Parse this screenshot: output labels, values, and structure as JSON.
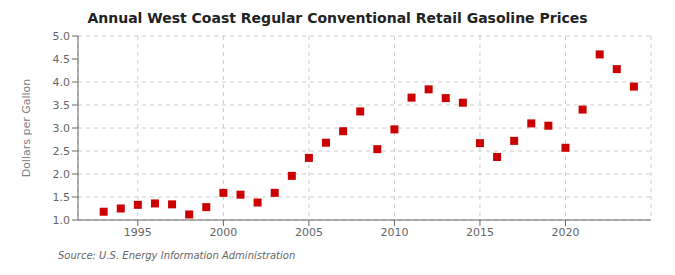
{
  "chart_data": {
    "type": "scatter",
    "title": "Annual West Coast Regular Conventional Retail Gasoline Prices",
    "ylabel": "Dollars per Gallon",
    "source": "Source: U.S. Energy Information Administration",
    "x": [
      1993,
      1994,
      1995,
      1996,
      1997,
      1998,
      1999,
      2000,
      2001,
      2002,
      2003,
      2004,
      2005,
      2006,
      2007,
      2008,
      2009,
      2010,
      2011,
      2012,
      2013,
      2014,
      2015,
      2016,
      2017,
      2018,
      2019,
      2020,
      2021,
      2022,
      2023,
      2024
    ],
    "values": [
      1.18,
      1.25,
      1.33,
      1.36,
      1.34,
      1.12,
      1.28,
      1.59,
      1.55,
      1.38,
      1.59,
      1.96,
      2.35,
      2.68,
      2.93,
      3.36,
      2.54,
      2.97,
      3.66,
      3.84,
      3.65,
      3.55,
      2.67,
      2.37,
      2.72,
      3.1,
      3.05,
      2.57,
      3.4,
      4.6,
      4.28,
      3.9
    ],
    "color": "#cc0000",
    "marker": "square",
    "xlim": [
      1991.5,
      2025.0
    ],
    "ylim": [
      1.0,
      5.0
    ],
    "xticks": [
      1995,
      2000,
      2005,
      2010,
      2015,
      2020
    ],
    "yticks": [
      {
        "value": 1.0,
        "label": "1.0"
      },
      1.5,
      {
        "value": 2.0,
        "label": "2.0"
      },
      2.5,
      {
        "value": 3.0,
        "label": "3.0"
      },
      3.5,
      {
        "value": 4.0,
        "label": "4.0"
      },
      4.5,
      {
        "value": 5.0,
        "label": "5.0"
      }
    ],
    "grid": true
  }
}
